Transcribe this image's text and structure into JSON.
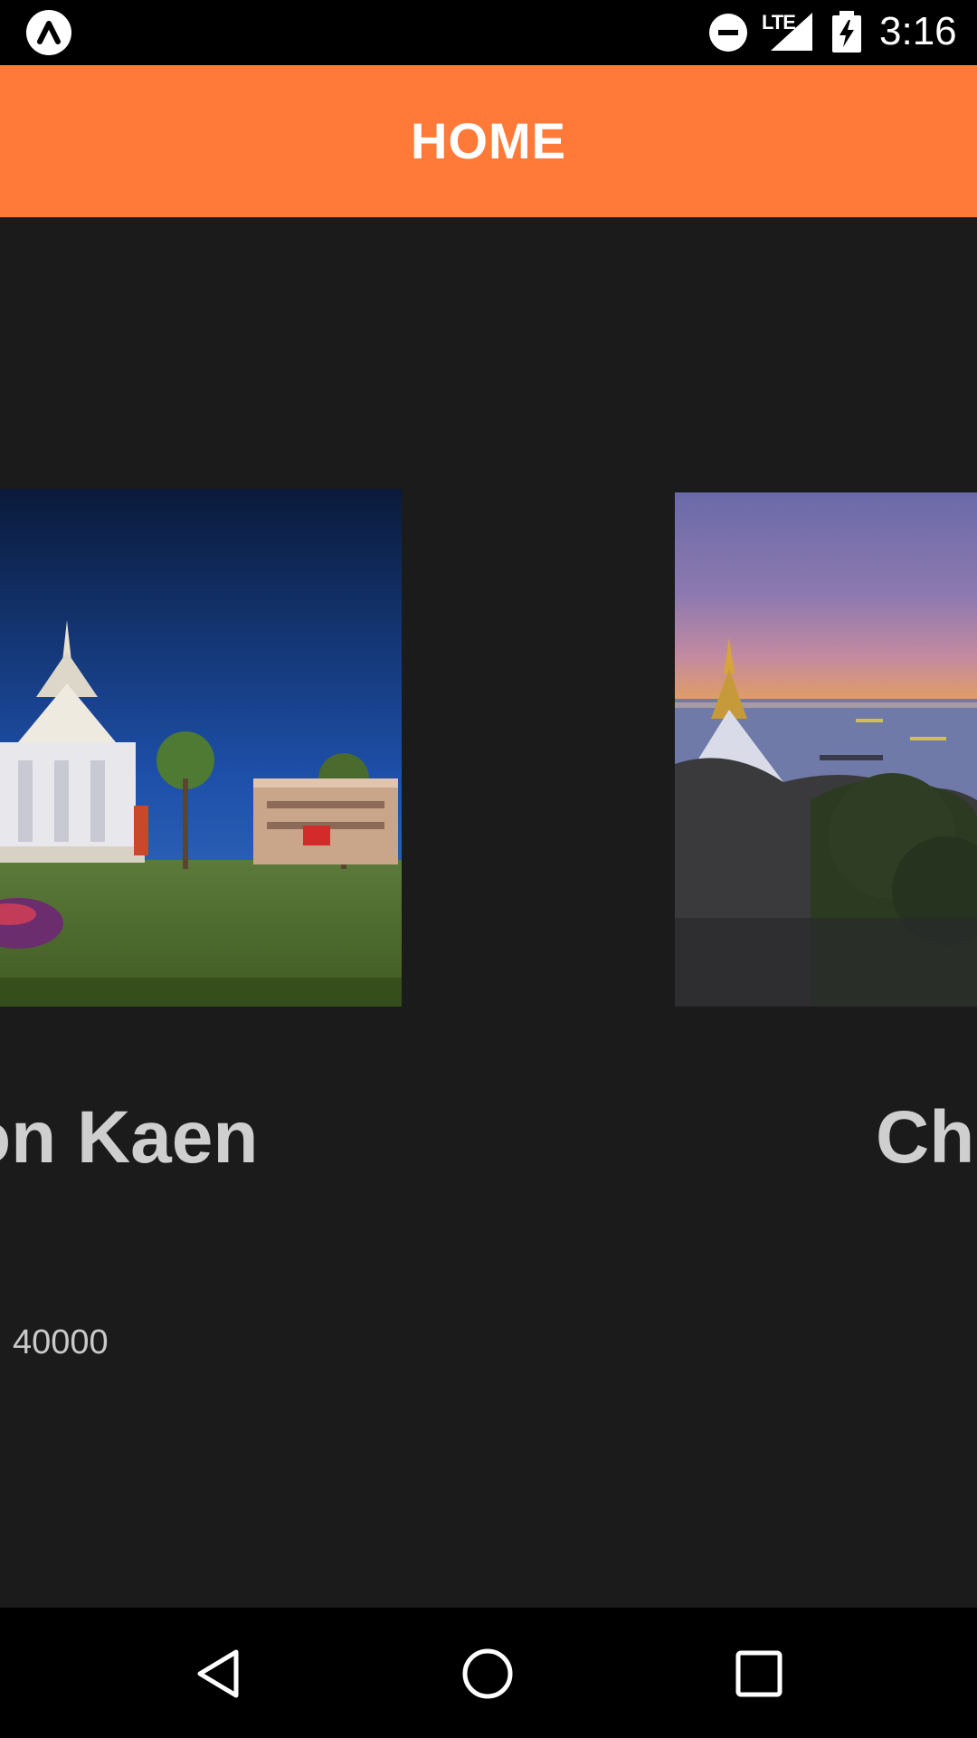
{
  "status_bar": {
    "time": "3:16",
    "network": "LTE",
    "icons": [
      "app-notification-icon",
      "do-not-disturb-icon",
      "signal-icon",
      "battery-charging-icon"
    ]
  },
  "header": {
    "title": "HOME",
    "color": "#ff7a38"
  },
  "cards": [
    {
      "title": "Khon Kaen",
      "visible_title": "on Kaen",
      "zip": "40000"
    },
    {
      "title": "Ch",
      "visible_title": "Ch"
    }
  ],
  "nav_bar": {
    "icons": [
      "back-icon",
      "home-icon",
      "recent-apps-icon"
    ]
  },
  "colors": {
    "background": "#1b1b1b",
    "header": "#ff7a38",
    "title_text": "#cfcfcf"
  }
}
